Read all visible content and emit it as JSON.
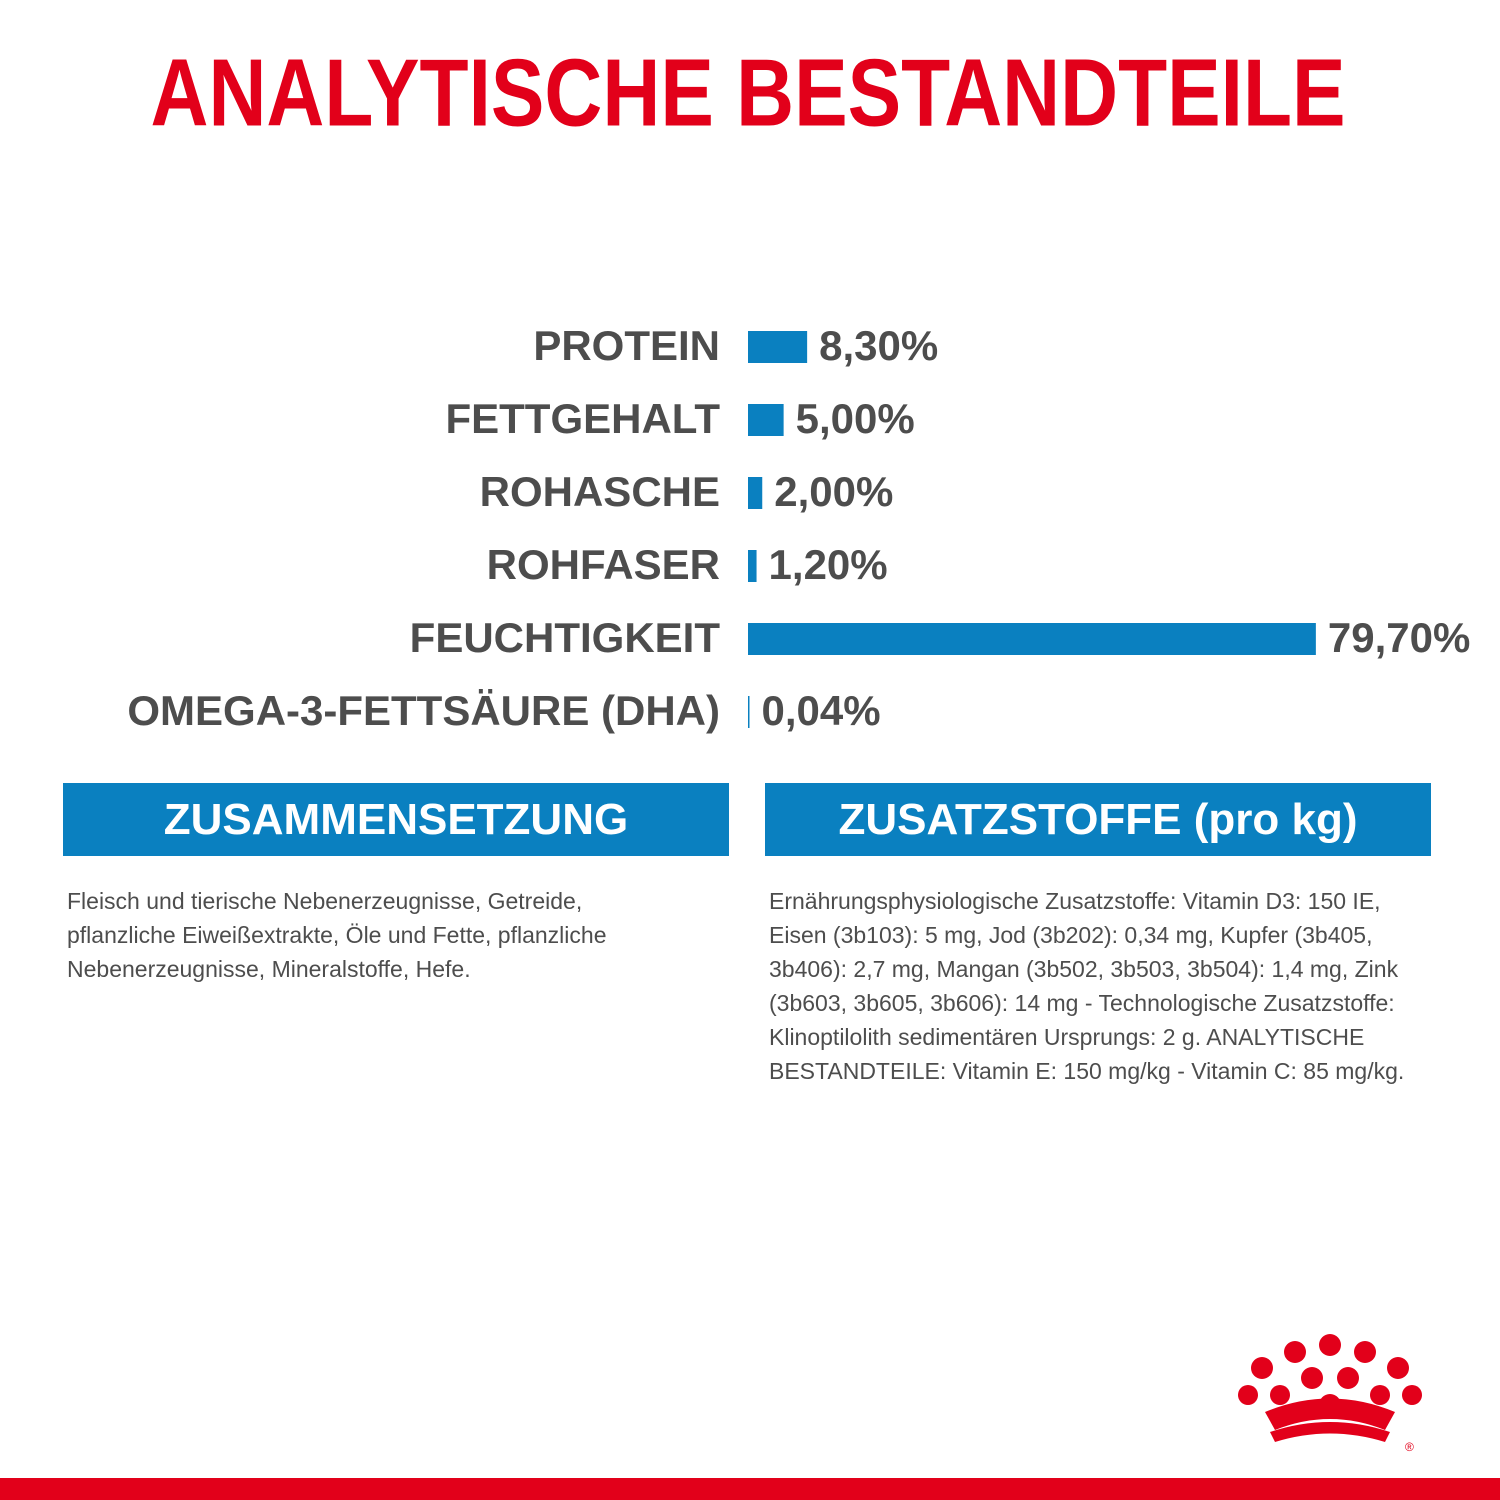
{
  "chart_data": {
    "type": "bar",
    "orientation": "horizontal",
    "title": "ANALYTISCHE BESTANDTEILE",
    "categories": [
      "PROTEIN",
      "FETTGEHALT",
      "ROHASCHE",
      "ROHFASER",
      "FEUCHTIGKEIT",
      "OMEGA-3-FETTSÄURE (DHA)"
    ],
    "values": [
      8.3,
      5.0,
      2.0,
      1.2,
      79.7,
      0.04
    ],
    "value_labels": [
      "8,30%",
      "5,00%",
      "2,00%",
      "1,20%",
      "79,70%",
      "0,04%"
    ],
    "color": "#0a80c0",
    "xlim": [
      0,
      80
    ]
  },
  "sections": [
    {
      "heading": "ZUSAMMENSETZUNG",
      "text": "Fleisch und tierische Nebenerzeugnisse, Getreide, pflanzliche Eiweißextrakte, Öle und Fette, pflanzliche Nebenerzeugnisse, Mineralstoffe, Hefe."
    },
    {
      "heading": "ZUSATZSTOFFE (pro kg)",
      "text": "Ernährungsphysiologische Zusatzstoffe: Vitamin D3: 150 IE, Eisen (3b103): 5 mg, Jod (3b202): 0,34 mg, Kupfer (3b405, 3b406): 2,7 mg, Mangan (3b502, 3b503, 3b504): 1,4 mg, Zink (3b603, 3b605, 3b606): 14 mg - Technologische Zusatzstoffe: Klinoptilolith sedimentären Ursprungs: 2 g. ANALYTISCHE BESTANDTEILE: Vitamin E: 150 mg/kg - Vitamin C: 85 mg/kg."
    }
  ],
  "logo_mark": "®"
}
